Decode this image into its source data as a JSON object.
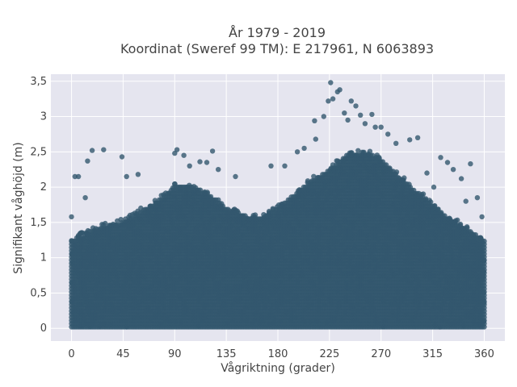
{
  "chart_data": {
    "type": "scatter",
    "title_line1": "År 1979 - 2019",
    "title_line2": "Koordinat (Sweref 99 TM): E 217961, N 6063893",
    "xlabel": "Vågriktning (grader)",
    "ylabel": "Signifikant våghöjd (m)",
    "xlim": [
      -18,
      378
    ],
    "ylim": [
      -0.18,
      3.6
    ],
    "x_ticks": [
      0,
      45,
      90,
      135,
      180,
      225,
      270,
      315,
      360
    ],
    "x_tick_labels": [
      "0",
      "45",
      "90",
      "135",
      "180",
      "225",
      "270",
      "315",
      "360"
    ],
    "y_ticks": [
      0,
      0.5,
      1,
      1.5,
      2,
      2.5,
      3,
      3.5
    ],
    "y_tick_labels": [
      "0",
      "0,5",
      "1",
      "1,5",
      "2",
      "2,5",
      "3",
      "3,5"
    ],
    "grid": true,
    "marker_color": "#33576e",
    "marker_opacity": 0.8,
    "envelope": {
      "x": [
        0,
        15,
        30,
        45,
        60,
        75,
        90,
        105,
        120,
        135,
        150,
        165,
        180,
        195,
        210,
        225,
        240,
        255,
        270,
        285,
        300,
        315,
        330,
        345,
        360
      ],
      "y_upper": [
        1.3,
        1.4,
        1.5,
        1.55,
        1.7,
        1.85,
        2.05,
        2.05,
        1.95,
        1.75,
        1.65,
        1.6,
        1.75,
        1.95,
        2.15,
        2.3,
        2.5,
        2.55,
        2.45,
        2.2,
        2.0,
        1.8,
        1.6,
        1.45,
        1.3
      ]
    },
    "outliers": [
      {
        "x": 0,
        "y": 1.58
      },
      {
        "x": 3,
        "y": 2.15
      },
      {
        "x": 6,
        "y": 2.15
      },
      {
        "x": 12,
        "y": 1.85
      },
      {
        "x": 14,
        "y": 2.37
      },
      {
        "x": 18,
        "y": 2.52
      },
      {
        "x": 28,
        "y": 2.53
      },
      {
        "x": 44,
        "y": 2.43
      },
      {
        "x": 48,
        "y": 2.15
      },
      {
        "x": 58,
        "y": 2.18
      },
      {
        "x": 90,
        "y": 2.48
      },
      {
        "x": 92,
        "y": 2.53
      },
      {
        "x": 98,
        "y": 2.45
      },
      {
        "x": 103,
        "y": 2.3
      },
      {
        "x": 112,
        "y": 2.36
      },
      {
        "x": 118,
        "y": 2.35
      },
      {
        "x": 123,
        "y": 2.51
      },
      {
        "x": 128,
        "y": 2.25
      },
      {
        "x": 143,
        "y": 2.15
      },
      {
        "x": 174,
        "y": 2.3
      },
      {
        "x": 186,
        "y": 2.3
      },
      {
        "x": 197,
        "y": 2.5
      },
      {
        "x": 203,
        "y": 2.55
      },
      {
        "x": 213,
        "y": 2.68
      },
      {
        "x": 212,
        "y": 2.94
      },
      {
        "x": 220,
        "y": 3.0
      },
      {
        "x": 224,
        "y": 3.22
      },
      {
        "x": 226,
        "y": 3.48
      },
      {
        "x": 228,
        "y": 3.25
      },
      {
        "x": 232,
        "y": 3.35
      },
      {
        "x": 234,
        "y": 3.38
      },
      {
        "x": 238,
        "y": 3.05
      },
      {
        "x": 241,
        "y": 2.95
      },
      {
        "x": 244,
        "y": 3.22
      },
      {
        "x": 248,
        "y": 3.15
      },
      {
        "x": 252,
        "y": 3.02
      },
      {
        "x": 256,
        "y": 2.9
      },
      {
        "x": 262,
        "y": 3.03
      },
      {
        "x": 265,
        "y": 2.85
      },
      {
        "x": 270,
        "y": 2.85
      },
      {
        "x": 276,
        "y": 2.75
      },
      {
        "x": 283,
        "y": 2.62
      },
      {
        "x": 295,
        "y": 2.67
      },
      {
        "x": 302,
        "y": 2.7
      },
      {
        "x": 310,
        "y": 2.2
      },
      {
        "x": 316,
        "y": 2.0
      },
      {
        "x": 322,
        "y": 2.42
      },
      {
        "x": 328,
        "y": 2.35
      },
      {
        "x": 333,
        "y": 2.25
      },
      {
        "x": 340,
        "y": 2.12
      },
      {
        "x": 348,
        "y": 2.33
      },
      {
        "x": 354,
        "y": 1.85
      },
      {
        "x": 344,
        "y": 1.8
      },
      {
        "x": 358,
        "y": 1.58
      }
    ]
  }
}
